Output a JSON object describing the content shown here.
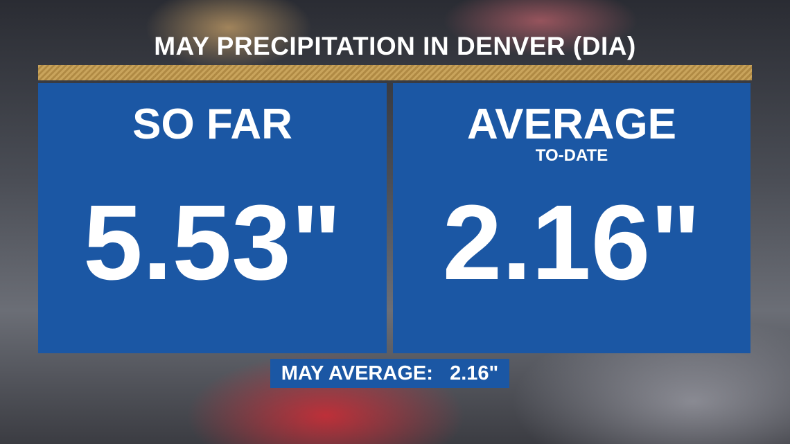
{
  "title": "MAY PRECIPITATION IN DENVER (DIA)",
  "panels": [
    {
      "heading": "SO FAR",
      "value": "5.53\""
    },
    {
      "heading": "AVERAGE",
      "subheading": "TO-DATE",
      "value": "2.16\""
    }
  ],
  "footer": {
    "label": "MAY AVERAGE:",
    "value": "2.16\""
  }
}
